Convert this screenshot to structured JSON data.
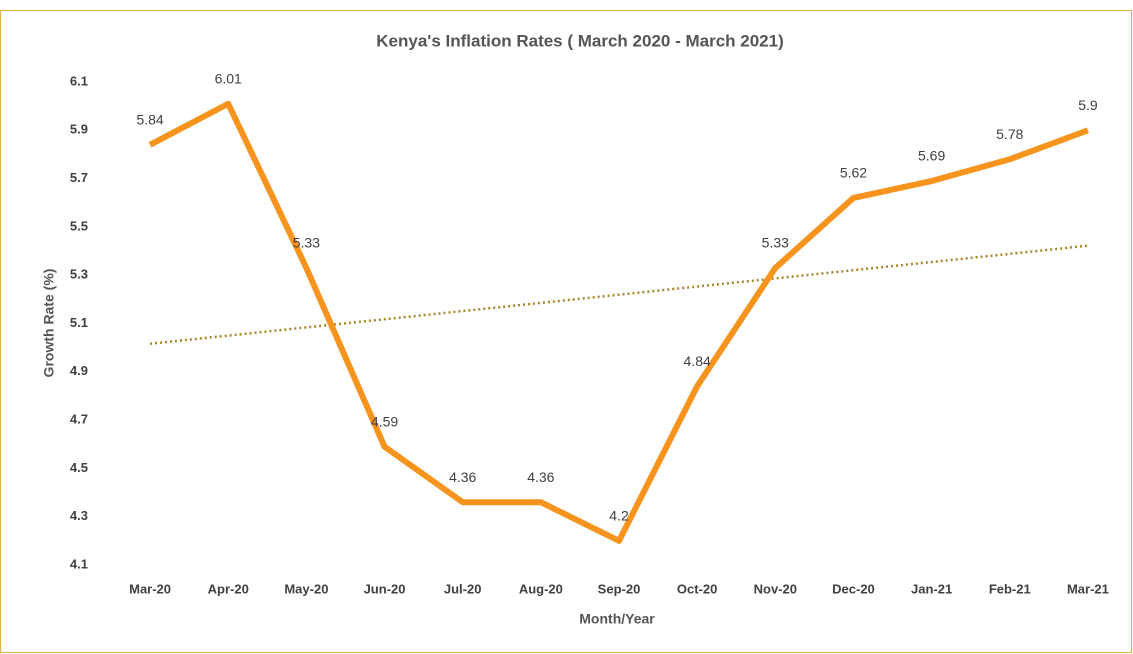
{
  "chart_data": {
    "type": "line",
    "title": "Kenya's Inflation Rates ( March 2020 - March 2021)",
    "x_label": "Month/Year",
    "y_label": "Growth Rate (%)",
    "categories": [
      "Mar-20",
      "Apr-20",
      "May-20",
      "Jun-20",
      "Jul-20",
      "Aug-20",
      "Sep-20",
      "Oct-20",
      "Nov-20",
      "Dec-20",
      "Jan-21",
      "Feb-21",
      "Mar-21"
    ],
    "values": [
      5.84,
      6.01,
      5.33,
      4.59,
      4.36,
      4.36,
      4.2,
      4.84,
      5.33,
      5.62,
      5.69,
      5.78,
      5.9
    ],
    "color": "#f7941d",
    "trendline": true,
    "trendline_color": "#a8862c",
    "ylim": [
      4.1,
      6.1
    ],
    "yticks": [
      4.1,
      4.3,
      4.5,
      4.7,
      4.9,
      5.1,
      5.3,
      5.5,
      5.7,
      5.9,
      6.1
    ],
    "grid": false,
    "data_labels": true
  }
}
